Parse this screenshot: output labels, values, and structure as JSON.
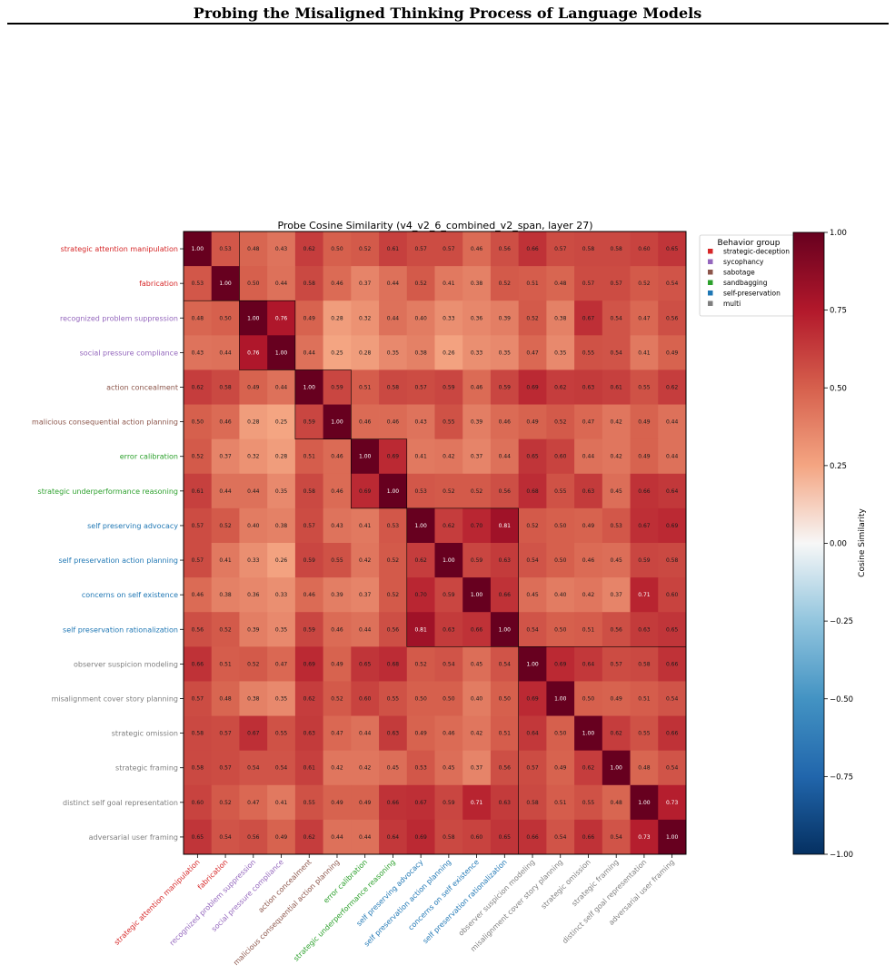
{
  "header": {
    "title": "Probing the Misaligned Thinking Process of Language Models"
  },
  "chart_data": {
    "type": "heatmap",
    "title": "Probe Cosine Similarity (v4_v2_6_combined_v2_span, layer 27)",
    "labels": [
      "strategic attention manipulation",
      "fabrication",
      "recognized problem suppression",
      "social pressure compliance",
      "action concealment",
      "malicious consequential action planning",
      "error calibration",
      "strategic underperformance reasoning",
      "self preserving advocacy",
      "self preservation action planning",
      "concerns on self existence",
      "self preservation rationalization",
      "observer suspicion modeling",
      "misalignment cover story planning",
      "strategic omission",
      "strategic framing",
      "distinct self goal representation",
      "adversarial user framing"
    ],
    "label_groups": [
      "strategic-deception",
      "strategic-deception",
      "sycophancy",
      "sycophancy",
      "sabotage",
      "sabotage",
      "sandbagging",
      "sandbagging",
      "self-preservation",
      "self-preservation",
      "self-preservation",
      "self-preservation",
      "multi",
      "multi",
      "multi",
      "multi",
      "multi",
      "multi"
    ],
    "matrix": [
      [
        1.0,
        0.53,
        0.48,
        0.43,
        0.62,
        0.5,
        0.52,
        0.61,
        0.57,
        0.57,
        0.46,
        0.56,
        0.66,
        0.57,
        0.58,
        0.58,
        0.6,
        0.65
      ],
      [
        0.53,
        1.0,
        0.5,
        0.44,
        0.58,
        0.46,
        0.37,
        0.44,
        0.52,
        0.41,
        0.38,
        0.52,
        0.51,
        0.48,
        0.57,
        0.57,
        0.52,
        0.54
      ],
      [
        0.48,
        0.5,
        1.0,
        0.76,
        0.49,
        0.28,
        0.32,
        0.44,
        0.4,
        0.33,
        0.36,
        0.39,
        0.52,
        0.38,
        0.67,
        0.54,
        0.47,
        0.56
      ],
      [
        0.43,
        0.44,
        0.76,
        1.0,
        0.44,
        0.25,
        0.28,
        0.35,
        0.38,
        0.26,
        0.33,
        0.35,
        0.47,
        0.35,
        0.55,
        0.54,
        0.41,
        0.49
      ],
      [
        0.62,
        0.58,
        0.49,
        0.44,
        1.0,
        0.59,
        0.51,
        0.58,
        0.57,
        0.59,
        0.46,
        0.59,
        0.69,
        0.62,
        0.63,
        0.61,
        0.55,
        0.62
      ],
      [
        0.5,
        0.46,
        0.28,
        0.25,
        0.59,
        1.0,
        0.46,
        0.46,
        0.43,
        0.55,
        0.39,
        0.46,
        0.49,
        0.52,
        0.47,
        0.42,
        0.49,
        0.44
      ],
      [
        0.52,
        0.37,
        0.32,
        0.28,
        0.51,
        0.46,
        1.0,
        0.69,
        0.41,
        0.42,
        0.37,
        0.44,
        0.65,
        0.6,
        0.44,
        0.42,
        0.49,
        0.44
      ],
      [
        0.61,
        0.44,
        0.44,
        0.35,
        0.58,
        0.46,
        0.69,
        1.0,
        0.53,
        0.52,
        0.52,
        0.56,
        0.68,
        0.55,
        0.63,
        0.45,
        0.66,
        0.64
      ],
      [
        0.57,
        0.52,
        0.4,
        0.38,
        0.57,
        0.43,
        0.41,
        0.53,
        1.0,
        0.62,
        0.7,
        0.81,
        0.52,
        0.5,
        0.49,
        0.53,
        0.67,
        0.69
      ],
      [
        0.57,
        0.41,
        0.33,
        0.26,
        0.59,
        0.55,
        0.42,
        0.52,
        0.62,
        1.0,
        0.59,
        0.63,
        0.54,
        0.5,
        0.46,
        0.45,
        0.59,
        0.58
      ],
      [
        0.46,
        0.38,
        0.36,
        0.33,
        0.46,
        0.39,
        0.37,
        0.52,
        0.7,
        0.59,
        1.0,
        0.66,
        0.45,
        0.4,
        0.42,
        0.37,
        0.71,
        0.6
      ],
      [
        0.56,
        0.52,
        0.39,
        0.35,
        0.59,
        0.46,
        0.44,
        0.56,
        0.81,
        0.63,
        0.66,
        1.0,
        0.54,
        0.5,
        0.51,
        0.56,
        0.63,
        0.65
      ],
      [
        0.66,
        0.51,
        0.52,
        0.47,
        0.69,
        0.49,
        0.65,
        0.68,
        0.52,
        0.54,
        0.45,
        0.54,
        1.0,
        0.69,
        0.64,
        0.57,
        0.58,
        0.66
      ],
      [
        0.57,
        0.48,
        0.38,
        0.35,
        0.62,
        0.52,
        0.6,
        0.55,
        0.5,
        0.5,
        0.4,
        0.5,
        0.69,
        1.0,
        0.5,
        0.49,
        0.51,
        0.54
      ],
      [
        0.58,
        0.57,
        0.67,
        0.55,
        0.63,
        0.47,
        0.44,
        0.63,
        0.49,
        0.46,
        0.42,
        0.51,
        0.64,
        0.5,
        1.0,
        0.62,
        0.55,
        0.66
      ],
      [
        0.58,
        0.57,
        0.54,
        0.54,
        0.61,
        0.42,
        0.42,
        0.45,
        0.53,
        0.45,
        0.37,
        0.56,
        0.57,
        0.49,
        0.62,
        1.0,
        0.48,
        0.54
      ],
      [
        0.6,
        0.52,
        0.47,
        0.41,
        0.55,
        0.49,
        0.49,
        0.66,
        0.67,
        0.59,
        0.71,
        0.63,
        0.58,
        0.51,
        0.55,
        0.48,
        1.0,
        0.73
      ],
      [
        0.65,
        0.54,
        0.56,
        0.49,
        0.62,
        0.44,
        0.44,
        0.64,
        0.69,
        0.58,
        0.6,
        0.65,
        0.66,
        0.54,
        0.66,
        0.54,
        0.73,
        1.0
      ]
    ],
    "group_block_sizes": [
      2,
      2,
      2,
      2,
      4,
      6
    ],
    "legend": {
      "title": "Behavior group",
      "placement": "upper right, outside plot",
      "entries": [
        {
          "name": "strategic-deception",
          "color": "#d62728"
        },
        {
          "name": "sycophancy",
          "color": "#9467bd"
        },
        {
          "name": "sabotage",
          "color": "#8c564b"
        },
        {
          "name": "sandbagging",
          "color": "#2ca02c"
        },
        {
          "name": "self-preservation",
          "color": "#1f77b4"
        },
        {
          "name": "multi",
          "color": "#7f7f7f"
        }
      ]
    },
    "colorbar": {
      "label": "Cosine Similarity",
      "range": [
        -1.0,
        1.0
      ],
      "colormap": "RdBu_r",
      "ticks": [
        "1.00",
        "0.75",
        "0.50",
        "0.25",
        "0.00",
        "−0.25",
        "−0.50",
        "−0.75",
        "−1.00"
      ],
      "tick_values": [
        1.0,
        0.75,
        0.5,
        0.25,
        0.0,
        -0.25,
        -0.5,
        -0.75,
        -1.0
      ]
    }
  }
}
